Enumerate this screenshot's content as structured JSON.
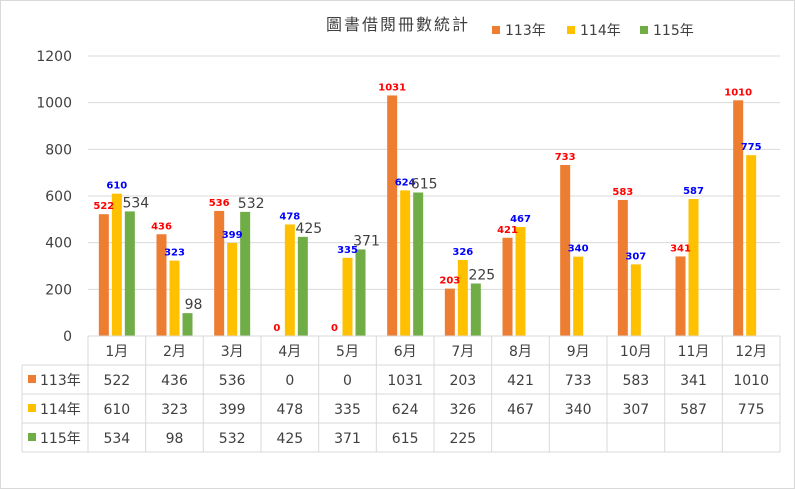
{
  "chart_data": {
    "type": "bar",
    "title": "圖書借閱冊數統計",
    "categories": [
      "1月",
      "2月",
      "3月",
      "4月",
      "5月",
      "6月",
      "7月",
      "8月",
      "9月",
      "10月",
      "11月",
      "12月"
    ],
    "ylim": [
      0,
      1200
    ],
    "yticks": [
      0,
      200,
      400,
      600,
      800,
      1000,
      1200
    ],
    "grid": true,
    "legend_position": "top-right",
    "series": [
      {
        "name": "113年",
        "color": "#ED7D31",
        "label_color": "#FF0000",
        "values": [
          522,
          436,
          536,
          0,
          0,
          1031,
          203,
          421,
          733,
          583,
          341,
          1010
        ]
      },
      {
        "name": "114年",
        "color": "#FFC000",
        "label_color": "#0000FF",
        "values": [
          610,
          323,
          399,
          478,
          335,
          624,
          326,
          467,
          340,
          307,
          587,
          775
        ]
      },
      {
        "name": "115年",
        "color": "#70AD47",
        "label_color": "#404040",
        "values": [
          534,
          98,
          532,
          425,
          371,
          615,
          225,
          null,
          null,
          null,
          null,
          null
        ]
      }
    ]
  }
}
